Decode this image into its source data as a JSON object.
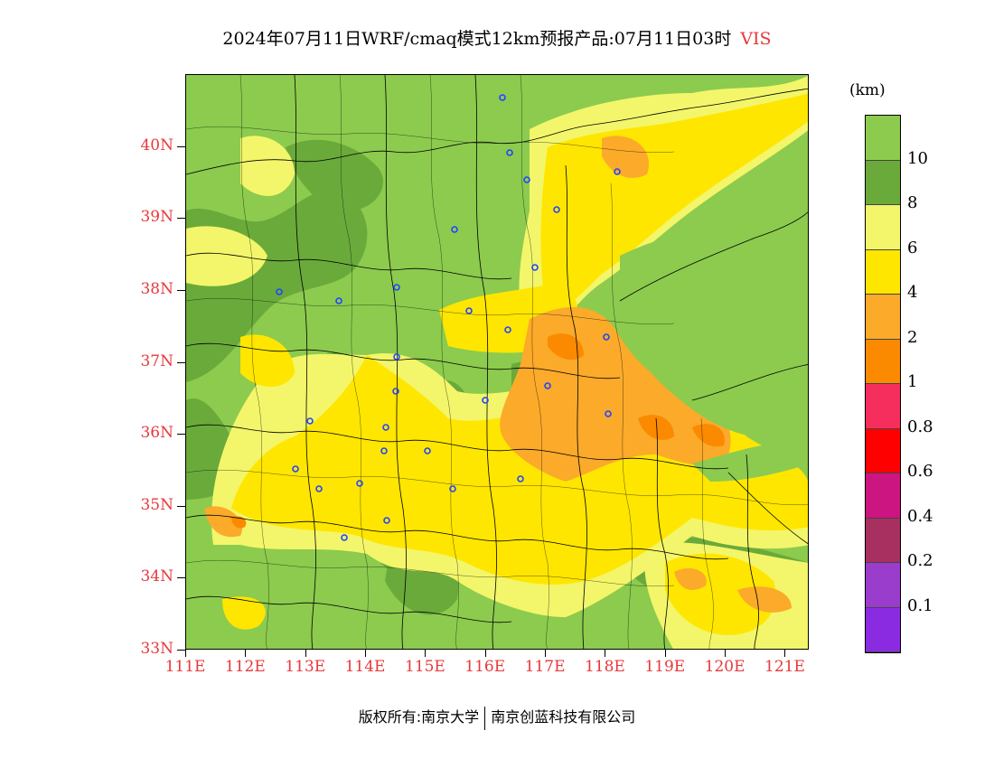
{
  "title": {
    "main": "2024年07月11日WRF/cmaq模式12km预报产品:07月11日03时",
    "variable": "VIS"
  },
  "lat_labels": [
    "40N",
    "39N",
    "38N",
    "37N",
    "36N",
    "35N",
    "34N",
    "33N"
  ],
  "lon_labels": [
    "111E",
    "112E",
    "113E",
    "114E",
    "115E",
    "116E",
    "117E",
    "118E",
    "119E",
    "120E",
    "121E"
  ],
  "colorbar": {
    "unit": "(km)",
    "labels": [
      "10",
      "8",
      "6",
      "4",
      "2",
      "1",
      "0.8",
      "0.6",
      "0.4",
      "0.2",
      "0.1"
    ],
    "colors": [
      "#8ccb4e",
      "#6aaa3a",
      "#f3f66a",
      "#ffe600",
      "#fbaa2a",
      "#fb8a00",
      "#f52e5e",
      "#ff0000",
      "#cc1580",
      "#a83060",
      "#9a3ccc",
      "#8a2be2"
    ]
  },
  "map_colors": {
    "green_light": "#8ccb4e",
    "green_dark": "#6aaa3a",
    "yellow_pale": "#f3f66a",
    "yellow": "#ffe600",
    "orange_light": "#fbaa2a",
    "orange": "#fb8a00",
    "city_marker": "#2244ff"
  },
  "copyright": {
    "left": "版权所有:南京大学",
    "right": "南京创蓝科技有限公司"
  }
}
